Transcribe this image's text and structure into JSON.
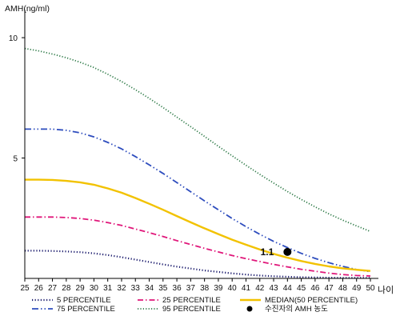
{
  "chart_data": {
    "type": "line",
    "ylabel": "AMH(ng/ml)",
    "xlabel": "나이",
    "x": [
      25,
      26,
      27,
      28,
      29,
      30,
      31,
      32,
      33,
      34,
      35,
      36,
      37,
      38,
      39,
      40,
      41,
      42,
      43,
      44,
      45,
      46,
      47,
      48,
      49,
      50
    ],
    "xlim": [
      25,
      50
    ],
    "ylim": [
      0,
      11
    ],
    "yticks": [
      5,
      10
    ],
    "grid": false,
    "legend_position": "bottom",
    "series": [
      {
        "name": "5 PERCENTILE",
        "color": "#1c1c6e",
        "dash": "1.2 2.4",
        "width": 2.2,
        "values": [
          1.15,
          1.15,
          1.14,
          1.12,
          1.09,
          1.04,
          0.97,
          0.88,
          0.78,
          0.68,
          0.58,
          0.49,
          0.41,
          0.33,
          0.27,
          0.21,
          0.16,
          0.12,
          0.09,
          0.07,
          0.05,
          0.04,
          0.03,
          0.02,
          0.02,
          0.02
        ]
      },
      {
        "name": "25 PERCENTILE",
        "color": "#e0177a",
        "dash": "7 3 1.5 3",
        "width": 1.8,
        "values": [
          2.55,
          2.55,
          2.55,
          2.53,
          2.49,
          2.42,
          2.32,
          2.2,
          2.05,
          1.9,
          1.74,
          1.57,
          1.41,
          1.25,
          1.1,
          0.95,
          0.82,
          0.7,
          0.58,
          0.48,
          0.38,
          0.3,
          0.22,
          0.16,
          0.12,
          0.1
        ]
      },
      {
        "name": "75 PERCENTILE",
        "color": "#2e4dbe",
        "dash": "8 3 1.5 3 1.5 3",
        "width": 1.8,
        "values": [
          6.2,
          6.2,
          6.2,
          6.15,
          6.05,
          5.88,
          5.65,
          5.38,
          5.06,
          4.72,
          4.36,
          3.98,
          3.6,
          3.22,
          2.85,
          2.49,
          2.15,
          1.83,
          1.54,
          1.28,
          1.04,
          0.83,
          0.65,
          0.5,
          0.37,
          0.28
        ]
      },
      {
        "name": "95 PERCENTILE",
        "color": "#2e7a47",
        "dash": "1.2 2.2",
        "width": 1.8,
        "values": [
          9.55,
          9.45,
          9.32,
          9.17,
          8.98,
          8.76,
          8.48,
          8.18,
          7.84,
          7.48,
          7.1,
          6.7,
          6.3,
          5.9,
          5.49,
          5.09,
          4.7,
          4.32,
          3.96,
          3.61,
          3.28,
          2.97,
          2.68,
          2.42,
          2.18,
          1.95
        ]
      },
      {
        "name": "MEDIAN(50 PERCENTILE)",
        "color": "#f2c200",
        "dash": "",
        "width": 2.4,
        "values": [
          4.1,
          4.1,
          4.09,
          4.05,
          3.99,
          3.89,
          3.74,
          3.56,
          3.34,
          3.1,
          2.85,
          2.59,
          2.33,
          2.08,
          1.84,
          1.61,
          1.4,
          1.2,
          1.02,
          0.86,
          0.72,
          0.6,
          0.5,
          0.42,
          0.36,
          0.31
        ]
      }
    ],
    "marker": {
      "name": "수진자의 AMH 농도",
      "x": 44,
      "y": 1.1,
      "label": "1.1",
      "color": "#000000"
    },
    "legend_rows": [
      [
        "5 PERCENTILE",
        "25 PERCENTILE",
        "MEDIAN(50 PERCENTILE)"
      ],
      [
        "75 PERCENTILE",
        "95 PERCENTILE",
        "수진자의 AMH 농도"
      ]
    ]
  }
}
